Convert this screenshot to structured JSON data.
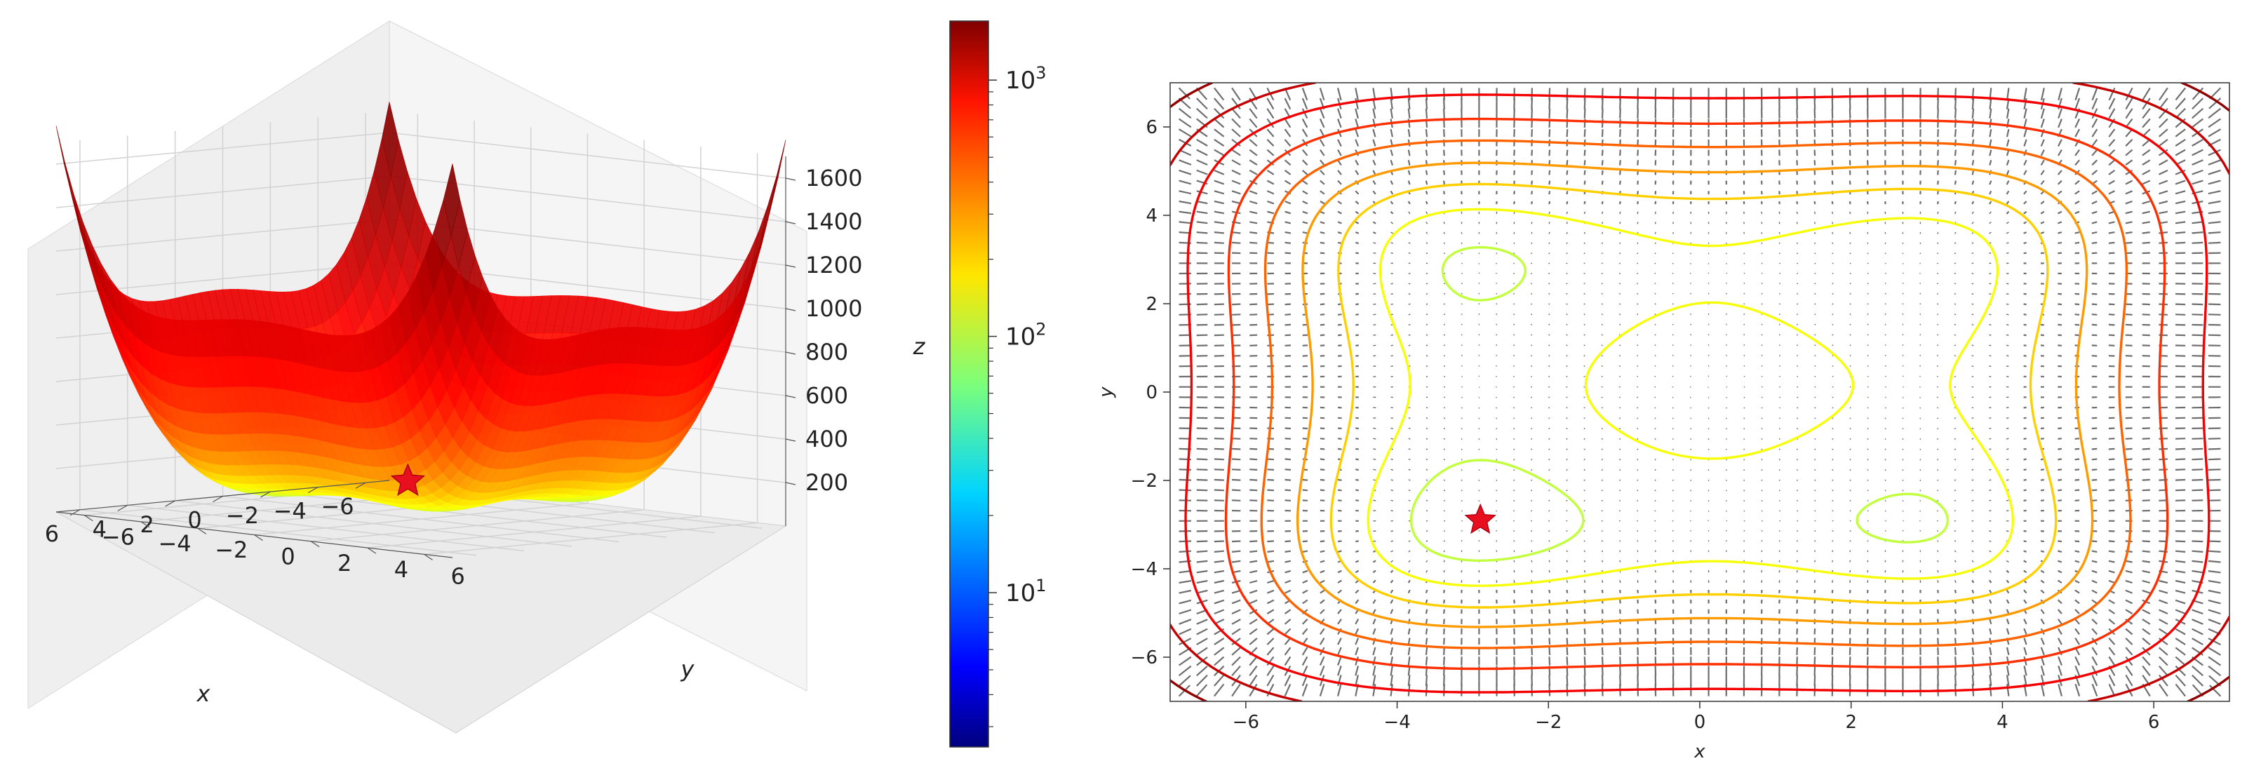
{
  "chart_data": [
    {
      "type": "surface3d",
      "function": "styblinski-tang (x^4 - 16x^2 + 5x)/2 shifted, log-scaled colors",
      "xlabel": "x",
      "ylabel": "y",
      "zlabel": "z",
      "xlim": [
        -7,
        7
      ],
      "ylim": [
        -7,
        7
      ],
      "zlim": [
        0,
        1700
      ],
      "x_ticks": [
        "−6",
        "−4",
        "−2",
        "0",
        "2",
        "4",
        "6"
      ],
      "y_ticks": [
        "−6",
        "−4",
        "−2",
        "0",
        "2",
        "4",
        "6"
      ],
      "z_ticks": [
        "200",
        "400",
        "600",
        "800",
        "1000",
        "1200",
        "1400",
        "1600"
      ],
      "minimum": {
        "x": -2.9,
        "y": -2.9,
        "marker": "star",
        "color": "#e8101e"
      },
      "colormap": "jet"
    },
    {
      "type": "colorbar",
      "scale": "log",
      "range": [
        2.5,
        1700
      ],
      "tick_labels": [
        "10^1",
        "10^2",
        "10^3"
      ],
      "tick_values": [
        10,
        100,
        1000
      ],
      "colormap": "jet"
    },
    {
      "type": "contour_quiver",
      "xlabel": "x",
      "ylabel": "y",
      "xlim": [
        -7,
        7
      ],
      "ylim": [
        -7,
        7
      ],
      "x_ticks": [
        "−6",
        "−4",
        "−2",
        "0",
        "2",
        "4",
        "6"
      ],
      "y_ticks": [
        "−6",
        "−4",
        "−2",
        "0",
        "2",
        "4",
        "6"
      ],
      "contour_levels": [
        3,
        5,
        7,
        10,
        14,
        20,
        28,
        40,
        55,
        75,
        100,
        140,
        200,
        280,
        400,
        560,
        800,
        1100,
        1500
      ],
      "minimum": {
        "x": -2.9,
        "y": -2.9,
        "marker": "star",
        "color": "#e8101e"
      },
      "quiver_color": "#6e6e6e"
    }
  ],
  "colors": {
    "pane": "#f2f2f2",
    "grid": "#cccccc",
    "star": "#e8101e"
  }
}
